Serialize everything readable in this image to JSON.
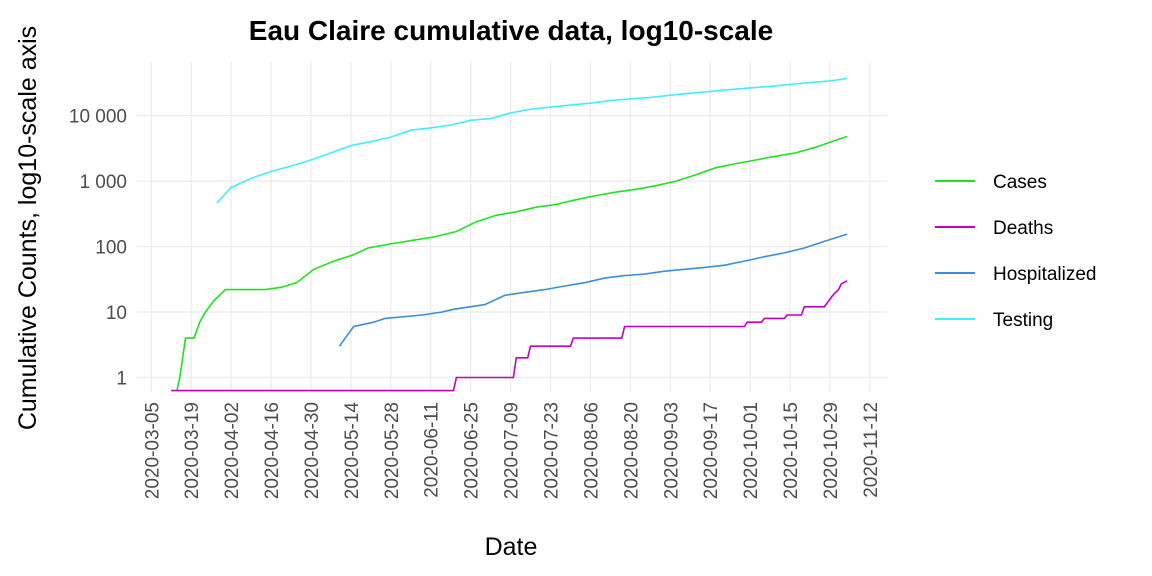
{
  "chart_data": {
    "type": "line",
    "title": "Eau Claire cumulative data, log10-scale",
    "x_label": "Date",
    "y_label": "Cumulative Counts, log10-scale axis",
    "log_y": true,
    "grid": true,
    "legend": "right",
    "xlim": [
      "2020-02-29",
      "2020-11-18"
    ],
    "xticks": [
      "2020-03-05",
      "2020-03-19",
      "2020-04-02",
      "2020-04-16",
      "2020-04-30",
      "2020-05-14",
      "2020-05-28",
      "2020-06-11",
      "2020-06-25",
      "2020-07-09",
      "2020-07-23",
      "2020-08-06",
      "2020-08-20",
      "2020-09-03",
      "2020-09-17",
      "2020-10-01",
      "2020-10-15",
      "2020-10-29",
      "2020-11-12"
    ],
    "ylim": [
      0.6,
      66000
    ],
    "yticks": [
      1,
      10,
      100,
      {
        "value": 1000,
        "label": "1 000"
      },
      {
        "value": 10000,
        "label": "10 000"
      }
    ],
    "series": [
      {
        "name": "Cases",
        "color": "#1ee41e",
        "x": [
          "2020-03-14",
          "2020-03-15",
          "2020-03-17",
          "2020-03-20",
          "2020-03-22",
          "2020-03-24",
          "2020-03-27",
          "2020-03-31",
          "2020-04-14",
          "2020-04-20",
          "2020-04-25",
          "2020-05-01",
          "2020-05-08",
          "2020-05-15",
          "2020-05-20",
          "2020-05-28",
          "2020-06-05",
          "2020-06-12",
          "2020-06-20",
          "2020-06-27",
          "2020-07-04",
          "2020-07-11",
          "2020-07-18",
          "2020-07-25",
          "2020-08-01",
          "2020-08-08",
          "2020-08-15",
          "2020-08-22",
          "2020-08-29",
          "2020-09-05",
          "2020-09-12",
          "2020-09-19",
          "2020-09-26",
          "2020-10-03",
          "2020-10-10",
          "2020-10-17",
          "2020-10-24",
          "2020-10-31",
          "2020-11-04"
        ],
        "values": [
          0.63,
          1,
          4,
          4,
          7,
          10,
          15,
          22,
          22,
          24,
          28,
          45,
          60,
          75,
          95,
          110,
          125,
          140,
          170,
          240,
          300,
          340,
          400,
          440,
          520,
          600,
          680,
          750,
          850,
          1000,
          1250,
          1600,
          1850,
          2100,
          2400,
          2700,
          3300,
          4200,
          4800
        ]
      },
      {
        "name": "Deaths",
        "color": "#c000c0",
        "x": [
          "2020-03-12",
          "2020-06-19",
          "2020-06-20",
          "2020-07-10",
          "2020-07-11",
          "2020-07-15",
          "2020-07-16",
          "2020-07-30",
          "2020-07-31",
          "2020-08-17",
          "2020-08-18",
          "2020-09-29",
          "2020-09-30",
          "2020-10-05",
          "2020-10-06",
          "2020-10-13",
          "2020-10-14",
          "2020-10-19",
          "2020-10-20",
          "2020-10-27",
          "2020-10-30",
          "2020-11-01",
          "2020-11-02",
          "2020-11-04"
        ],
        "values": [
          0.63,
          0.63,
          1,
          1,
          2,
          2,
          3,
          3,
          4,
          4,
          6,
          6,
          7,
          7,
          8,
          8,
          9,
          9,
          12,
          12,
          18,
          22,
          27,
          30
        ]
      },
      {
        "name": "Hospitalized",
        "color": "#3a8ee0",
        "x": [
          "2020-05-10",
          "2020-05-12",
          "2020-05-15",
          "2020-05-22",
          "2020-05-26",
          "2020-06-08",
          "2020-06-15",
          "2020-06-19",
          "2020-06-30",
          "2020-07-07",
          "2020-07-14",
          "2020-07-21",
          "2020-07-28",
          "2020-08-04",
          "2020-08-11",
          "2020-08-18",
          "2020-08-25",
          "2020-09-01",
          "2020-09-08",
          "2020-09-15",
          "2020-09-22",
          "2020-09-29",
          "2020-10-06",
          "2020-10-13",
          "2020-10-20",
          "2020-10-27",
          "2020-11-04"
        ],
        "values": [
          3,
          4,
          6,
          7,
          8,
          9,
          10,
          11,
          13,
          18,
          20,
          22,
          25,
          28,
          33,
          36,
          38,
          42,
          45,
          48,
          52,
          60,
          70,
          80,
          95,
          120,
          155
        ]
      },
      {
        "name": "Testing",
        "color": "#40efff",
        "x": [
          "2020-03-28",
          "2020-04-02",
          "2020-04-09",
          "2020-04-16",
          "2020-04-23",
          "2020-04-30",
          "2020-05-07",
          "2020-05-14",
          "2020-05-21",
          "2020-05-28",
          "2020-06-04",
          "2020-06-11",
          "2020-06-18",
          "2020-06-25",
          "2020-07-02",
          "2020-07-09",
          "2020-07-16",
          "2020-07-23",
          "2020-07-30",
          "2020-08-06",
          "2020-08-13",
          "2020-08-20",
          "2020-08-27",
          "2020-09-03",
          "2020-09-10",
          "2020-09-17",
          "2020-09-24",
          "2020-10-01",
          "2020-10-08",
          "2020-10-15",
          "2020-10-22",
          "2020-10-29",
          "2020-11-04"
        ],
        "values": [
          460,
          800,
          1100,
          1400,
          1700,
          2100,
          2700,
          3500,
          4000,
          4700,
          6000,
          6500,
          7200,
          8500,
          9000,
          11000,
          12500,
          13500,
          14500,
          15500,
          17000,
          18000,
          19000,
          20500,
          22000,
          23500,
          25000,
          26500,
          28000,
          30000,
          32000,
          34000,
          37000
        ]
      }
    ]
  }
}
